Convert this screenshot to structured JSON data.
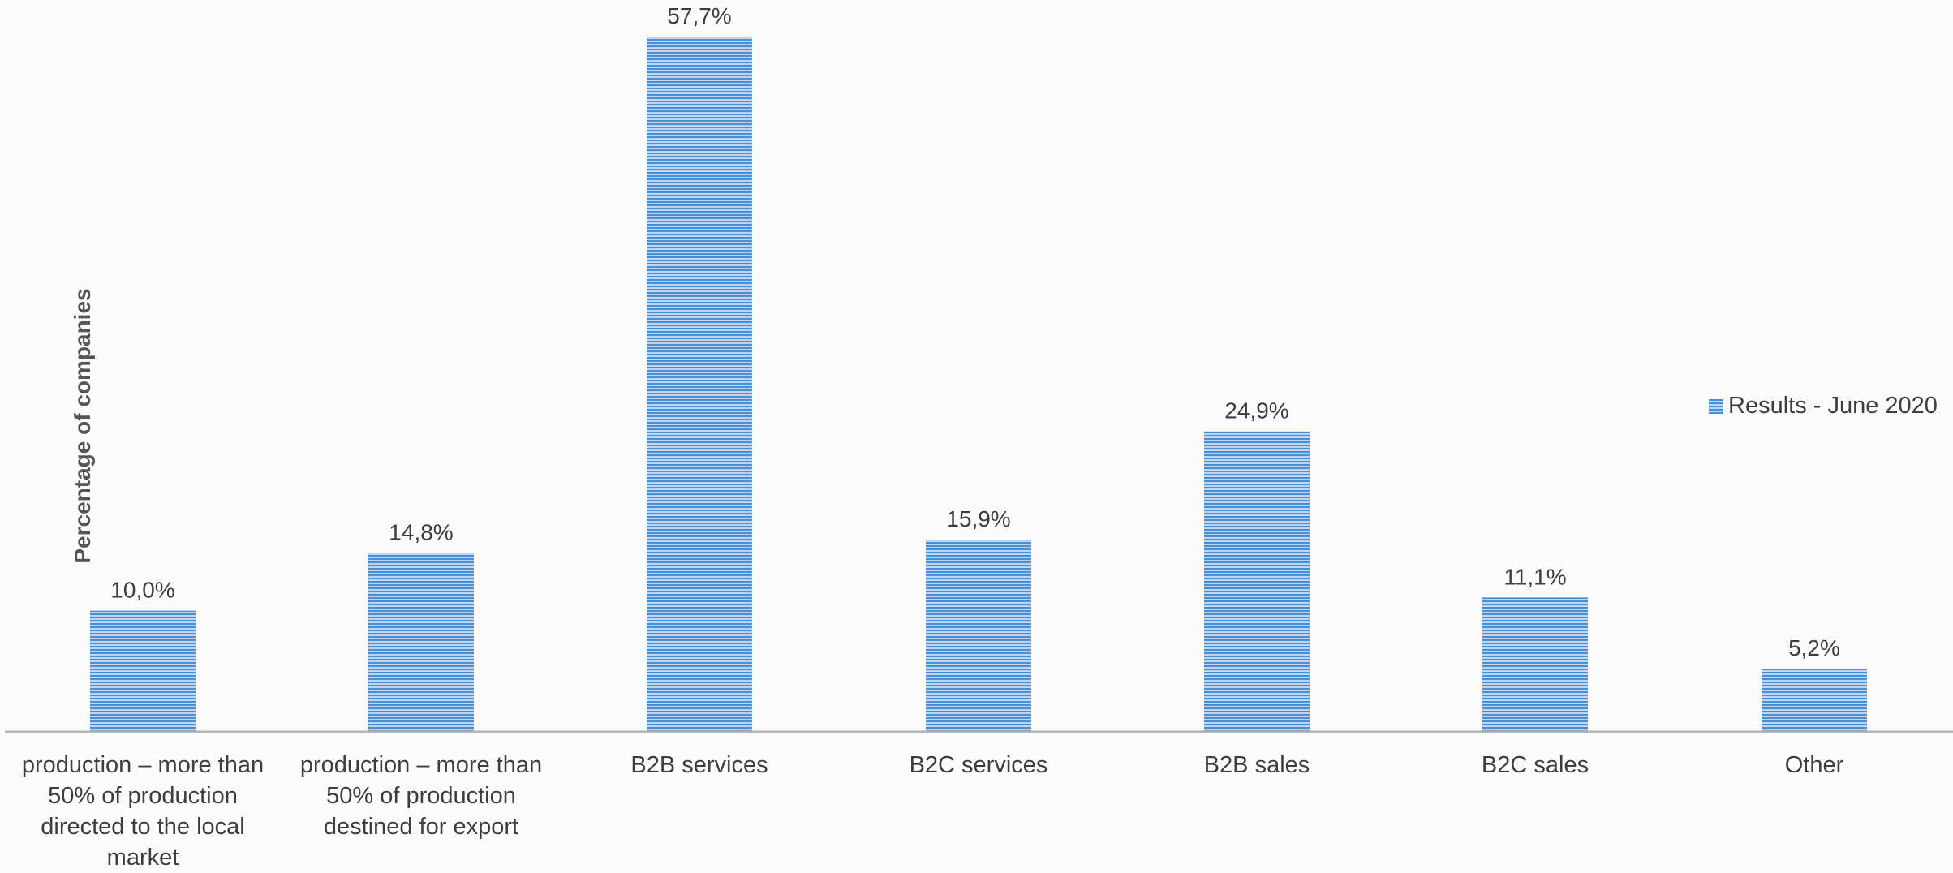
{
  "chart_data": {
    "type": "bar",
    "categories": [
      "production – more than 50% of production directed to the local market",
      "production – more than 50% of production destined for export",
      "B2B services",
      "B2C services",
      "B2B sales",
      "B2C sales",
      "Other"
    ],
    "series": [
      {
        "name": "Results - June 2020",
        "values": [
          10.0,
          14.8,
          57.7,
          15.9,
          24.9,
          11.1,
          5.2
        ]
      }
    ],
    "data_labels": [
      "10,0%",
      "14,8%",
      "57,7%",
      "15,9%",
      "24,9%",
      "11,1%",
      "5,2%"
    ],
    "ylabel": "Percentage of companies",
    "xlabel": "",
    "ylim": [
      0,
      57.7
    ],
    "grid": false,
    "legend_position": "right",
    "colors": {
      "bar": "#4a8fd6",
      "bar_light": "#bcd6f2",
      "axis": "#b5b5b5",
      "label": "#3d3d3d"
    }
  }
}
